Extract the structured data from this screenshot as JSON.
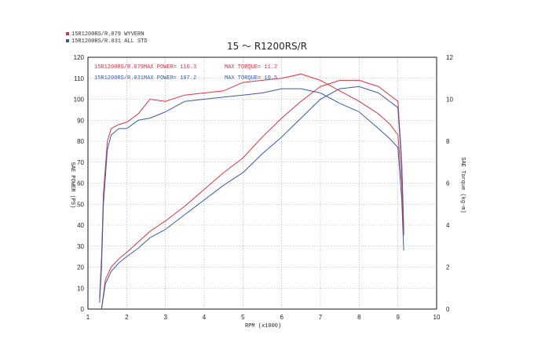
{
  "legend": [
    {
      "label": "15R1200RS/R.079  WYVERN",
      "color": "#d9333f"
    },
    {
      "label": "15R1200RS/R.031  ALL STD",
      "color": "#3a5aa8"
    }
  ],
  "annotations": {
    "red_name": "15R1200RS/R.079",
    "red_power": "MAX POWER= 110.3",
    "red_torque": "MAX TORQUE= 11.2",
    "blue_name": "15R1200RS/R.031",
    "blue_power": "MAX POWER= 107.2",
    "blue_torque": "MAX TORQUE= 10.5"
  },
  "chart_data": {
    "type": "line",
    "title": "15 ～ R1200RS/R",
    "xlabel": "RPM (x1000)",
    "ylabel_left": "SAE POWER (PS)",
    "ylabel_right": "SAE Torque (kg-m)",
    "xlim": [
      1,
      10
    ],
    "ylim_left": [
      0,
      120
    ],
    "ylim_right": [
      0,
      12
    ],
    "x_ticks": [
      "1",
      "2",
      "3",
      "4",
      "5",
      "6",
      "7",
      "8",
      "9",
      "10"
    ],
    "y_left_ticks": [
      "0",
      "10",
      "20",
      "30",
      "40",
      "50",
      "60",
      "70",
      "80",
      "90",
      "100",
      "110",
      "120"
    ],
    "y_right_ticks": [
      "0",
      "2",
      "4",
      "6",
      "8",
      "10",
      "12"
    ],
    "grid": true,
    "legend_position": "top-left",
    "colors": {
      "red": "#d9333f",
      "blue": "#3a5aa8",
      "grid": "#9a9a9a"
    },
    "series": [
      {
        "name": "15R1200RS/R.079  WYVERN",
        "axis": "left",
        "color": "#d9333f",
        "x": [
          1.35,
          1.45,
          1.6,
          1.8,
          2.0,
          2.3,
          2.6,
          3.0,
          3.5,
          4.0,
          4.5,
          5.0,
          5.5,
          6.0,
          6.5,
          7.0,
          7.5,
          8.0,
          8.5,
          9.0,
          9.1,
          9.15
        ],
        "y": [
          0,
          14,
          20,
          24,
          27,
          32,
          37,
          42,
          49,
          57,
          65,
          72,
          82,
          91,
          99,
          106,
          109,
          109,
          106,
          99,
          70,
          38
        ]
      },
      {
        "name": "15R1200RS/R.031  ALL STD",
        "axis": "left",
        "color": "#3a5aa8",
        "x": [
          1.35,
          1.45,
          1.6,
          1.8,
          2.0,
          2.3,
          2.6,
          3.0,
          3.5,
          4.0,
          4.5,
          5.0,
          5.5,
          6.0,
          6.5,
          7.0,
          7.5,
          8.0,
          8.5,
          9.0,
          9.1,
          9.15
        ],
        "y": [
          0,
          12,
          18,
          22,
          25,
          29,
          34,
          38,
          45,
          52,
          59,
          65,
          74,
          82,
          91,
          100,
          105,
          106,
          103,
          96,
          68,
          36
        ]
      },
      {
        "name": "15R1200RS/R.079  WYVERN",
        "axis": "right",
        "color": "#d9333f",
        "x": [
          1.3,
          1.35,
          1.4,
          1.5,
          1.6,
          1.8,
          2.0,
          2.3,
          2.6,
          3.0,
          3.5,
          4.0,
          4.5,
          5.0,
          5.5,
          6.0,
          6.5,
          7.0,
          7.5,
          8.0,
          8.5,
          8.8,
          9.0,
          9.1,
          9.15
        ],
        "y": [
          0.5,
          2.5,
          5.5,
          8.0,
          8.6,
          8.8,
          8.9,
          9.3,
          10.0,
          9.9,
          10.2,
          10.3,
          10.4,
          10.8,
          10.9,
          11.0,
          11.2,
          10.9,
          10.4,
          9.9,
          9.3,
          8.8,
          8.3,
          6.0,
          3.5
        ]
      },
      {
        "name": "15R1200RS/R.031  ALL STD",
        "axis": "right",
        "color": "#3a5aa8",
        "x": [
          1.3,
          1.35,
          1.4,
          1.5,
          1.6,
          1.8,
          2.0,
          2.3,
          2.6,
          3.0,
          3.5,
          4.0,
          4.5,
          5.0,
          5.5,
          6.0,
          6.5,
          7.0,
          7.5,
          8.0,
          8.5,
          8.8,
          9.0,
          9.1,
          9.15
        ],
        "y": [
          0.3,
          2.0,
          5.0,
          7.6,
          8.3,
          8.6,
          8.6,
          9.0,
          9.1,
          9.4,
          9.9,
          10.0,
          10.1,
          10.2,
          10.3,
          10.5,
          10.5,
          10.3,
          9.8,
          9.4,
          8.6,
          8.1,
          7.7,
          5.2,
          2.8
        ]
      }
    ]
  }
}
